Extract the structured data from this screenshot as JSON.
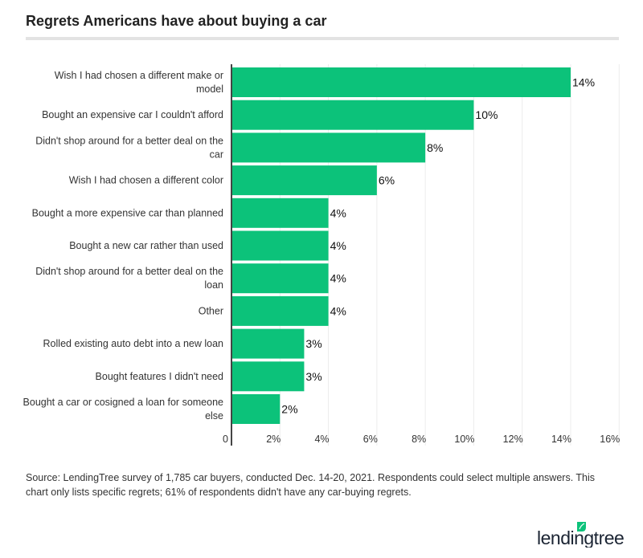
{
  "chart_data": {
    "type": "bar",
    "orientation": "horizontal",
    "title": "Regrets Americans have about buying a car",
    "categories": [
      [
        "Wish I had chosen a different make or",
        "model"
      ],
      [
        "Bought an expensive car I couldn't afford"
      ],
      [
        "Didn't shop around for a better deal on the",
        "car"
      ],
      [
        "Wish I had chosen a different color"
      ],
      [
        "Bought a more expensive car than planned"
      ],
      [
        "Bought a new car rather than used"
      ],
      [
        "Didn't shop around for a better deal on the",
        "loan"
      ],
      [
        "Other"
      ],
      [
        "Rolled existing auto debt into a new loan"
      ],
      [
        "Bought features I didn't need"
      ],
      [
        "Bought a car or cosigned a loan for someone",
        "else"
      ]
    ],
    "values": [
      14,
      10,
      8,
      6,
      4,
      4,
      4,
      4,
      3,
      3,
      2
    ],
    "value_labels": [
      "14%",
      "10%",
      "8%",
      "6%",
      "4%",
      "4%",
      "4%",
      "4%",
      "3%",
      "3%",
      "2%"
    ],
    "xlim": [
      0,
      16
    ],
    "x_ticks": [
      0,
      2,
      4,
      6,
      8,
      10,
      12,
      14,
      16
    ],
    "x_tick_labels": [
      "0",
      "2%",
      "4%",
      "6%",
      "8%",
      "10%",
      "12%",
      "14%",
      "16%"
    ],
    "grid": "vertical",
    "bar_color": "#0cc27a"
  },
  "source": "Source: LendingTree survey of 1,785 car buyers, conducted Dec. 14-20, 2021. Respondents could select multiple answers. This chart only lists specific regrets; 61% of respondents didn't have any car-buying regrets.",
  "logo": {
    "text": "lendingtree",
    "icon": "leaf-icon",
    "color": "#0cc27a"
  }
}
